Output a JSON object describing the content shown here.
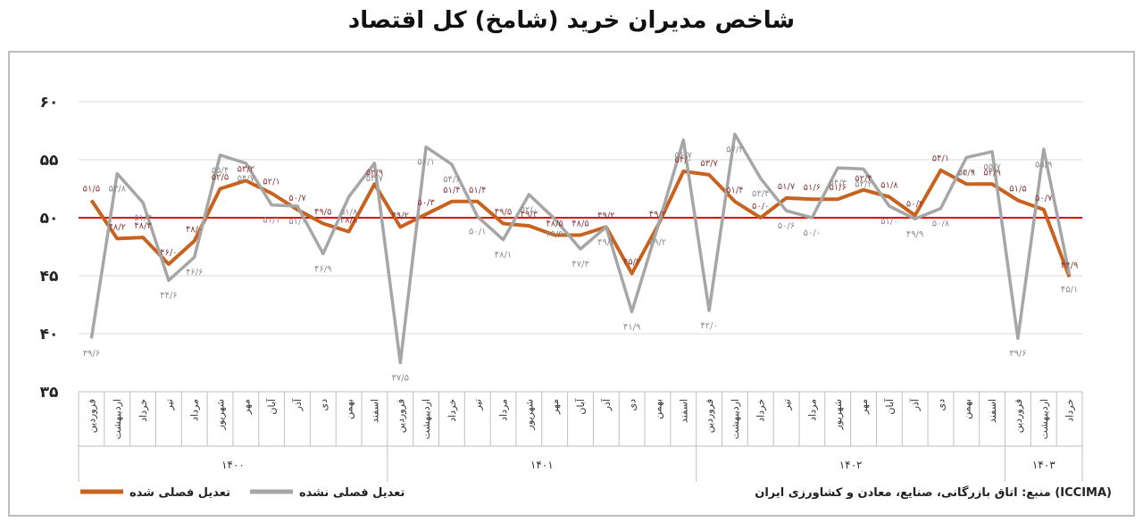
{
  "chart_data": {
    "type": "line",
    "title": "شاخص مدیران خرید (شامخ) کل اقتصاد",
    "source": "منبع: اتاق بازرگانی، صنایع، معادن و کشاورزی ایران (ICCIMA)",
    "groups": [
      {
        "label": "۱۴۰۰",
        "categories": [
          "فروردین",
          "اردیبهشت",
          "خرداد",
          "تیر",
          "مرداد",
          "شهریور",
          "مهر",
          "آبان",
          "آذر",
          "دی",
          "بهمن",
          "اسفند"
        ]
      },
      {
        "label": "۱۴۰۱",
        "categories": [
          "فروردین",
          "اردیبهشت",
          "خرداد",
          "تیر",
          "مرداد",
          "شهریور",
          "مهر",
          "آبان",
          "آذر",
          "دی",
          "بهمن",
          "اسفند"
        ]
      },
      {
        "label": "۱۴۰۲",
        "categories": [
          "فروردین",
          "اردیبهشت",
          "خرداد",
          "تیر",
          "مرداد",
          "شهریور",
          "مهر",
          "آبان",
          "آذر",
          "دی",
          "بهمن",
          "اسفند"
        ]
      },
      {
        "label": "۱۴۰۳",
        "categories": [
          "فروردین",
          "اردیبهشت",
          "خرداد"
        ]
      }
    ],
    "series": [
      {
        "name": "تعدیل فصلی شده",
        "color": "#c8621e",
        "label_color": "#8b3a3a",
        "values": [
          51.5,
          48.2,
          48.3,
          46.0,
          48.0,
          52.5,
          53.2,
          52.1,
          50.7,
          49.5,
          48.8,
          52.9,
          49.2,
          50.3,
          51.4,
          51.4,
          49.5,
          49.3,
          48.5,
          48.5,
          49.2,
          45.2,
          49.3,
          54.0,
          53.7,
          51.4,
          50.0,
          51.7,
          51.6,
          51.6,
          52.4,
          51.8,
          50.2,
          54.1,
          52.9,
          52.9,
          51.5,
          50.7,
          44.9
        ],
        "value_labels": [
          "۵۱/۵",
          "۴۸/۲",
          "۴۸/۳",
          "۴۶/۰",
          "۴۸/۰",
          "۵۲/۵",
          "۵۳/۲",
          "۵۲/۱",
          "۵۰/۷",
          "۴۹/۵",
          "۴۸/۸",
          "۵۲/۹",
          "۴۹/۲",
          "۵۰/۳",
          "۵۱/۴",
          "۵۱/۴",
          "۴۹/۵",
          "۴۹/۳",
          "۴۸/۵",
          "۴۸/۵",
          "۴۹/۲",
          "۴۵/۲",
          "۴۹/۳",
          "۵۴/۰",
          "۵۳/۷",
          "۵۱/۴",
          "۵۰/۰",
          "۵۱/۷",
          "۵۱/۶",
          "۵۱/۶",
          "۵۲/۴",
          "۵۱/۸",
          "۵۰/۲",
          "۵۴/۱",
          "۵۲/۹",
          "۵۲/۹",
          "۵۱/۵",
          "۵۰/۷",
          "۴۴/۹"
        ]
      },
      {
        "name": "تعدیل فصلی نشده",
        "color": "#a6a6a6",
        "label_color": "#8c8c8c",
        "values": [
          39.6,
          53.8,
          51.3,
          44.6,
          46.6,
          55.4,
          54.7,
          51.1,
          51.0,
          46.9,
          51.8,
          54.7,
          37.5,
          56.1,
          54.6,
          50.1,
          48.1,
          52.0,
          49.9,
          47.3,
          49.2,
          41.9,
          49.2,
          56.7,
          42.0,
          57.2,
          53.4,
          50.6,
          50.0,
          54.3,
          54.2,
          51.0,
          49.9,
          50.8,
          55.2,
          55.7,
          39.6,
          55.9,
          45.1
        ],
        "value_labels": [
          "۳۹/۶",
          "۵۳/۸",
          "۵۱/۳",
          "۴۴/۶",
          "۴۶/۶",
          "۵۵/۴",
          "۵۴/۷",
          "۵۱/۱",
          "۵۱/۰",
          "۴۶/۹",
          "۵۱/۸",
          "۵۴/۷",
          "۳۷/۵",
          "۵۶/۱",
          "۵۴/۶",
          "۵۰/۱",
          "۴۸/۱",
          "۵۲/۰",
          "۴۹/۹",
          "۴۷/۳",
          "۴۹/۲",
          "۴۱/۹",
          "۴۹/۲",
          "۵۶/۷",
          "۴۲/۰",
          "۵۷/۲",
          "۵۳/۴",
          "۵۰/۶",
          "۵۰/۰",
          "۵۴/۳",
          "۵۴/۲",
          "۵۱/۰",
          "۴۹/۹",
          "۵۰/۸",
          "۵۵/۲",
          "۵۵/۷",
          "۳۹/۶",
          "۵۵/۹",
          "۴۵/۱"
        ]
      }
    ],
    "reference_line": {
      "value": 50,
      "color": "#e00000"
    },
    "ylim": [
      35,
      60
    ],
    "yticks": [
      {
        "value": 35,
        "label": "۳۵"
      },
      {
        "value": 40,
        "label": "۴۰"
      },
      {
        "value": 45,
        "label": "۴۵"
      },
      {
        "value": 50,
        "label": "۵۰"
      },
      {
        "value": 55,
        "label": "۵۵"
      },
      {
        "value": 60,
        "label": "۶۰"
      }
    ],
    "grid": true
  }
}
